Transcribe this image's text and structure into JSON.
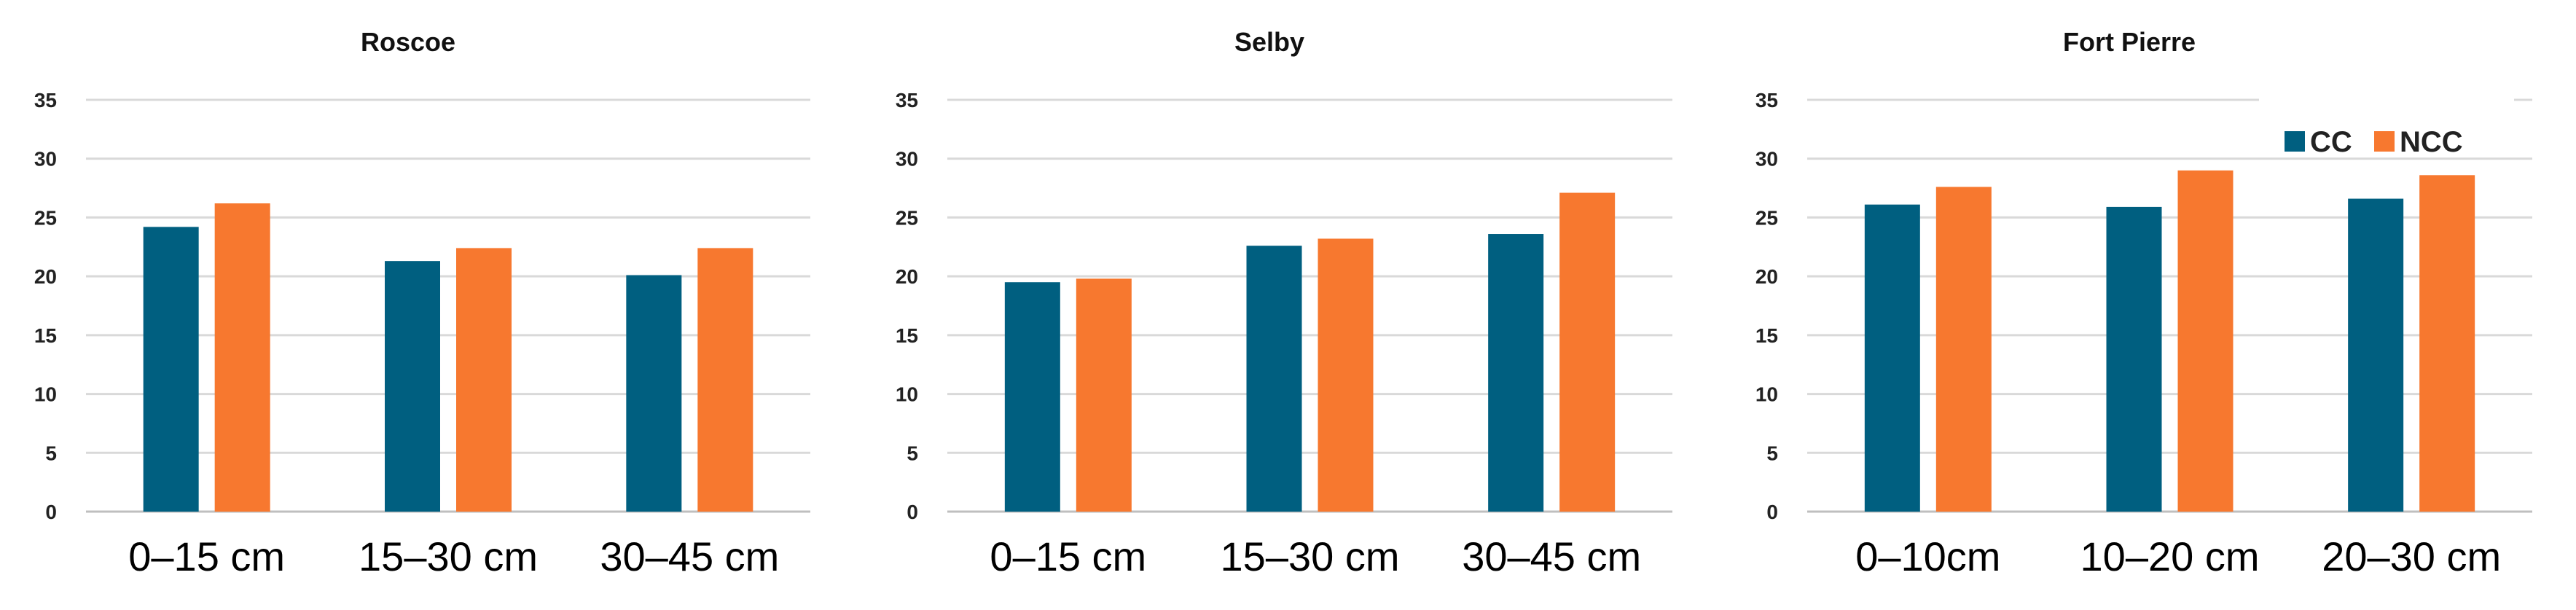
{
  "colors": {
    "CC": "#005f80",
    "NCC": "#f7782f"
  },
  "legend": {
    "items": [
      "CC",
      "NCC"
    ]
  },
  "chart_data": [
    {
      "type": "bar",
      "title": "Roscoe",
      "categories": [
        "0–15 cm",
        "15–30 cm",
        "30–45 cm"
      ],
      "ylim": [
        0,
        35
      ],
      "yticks": [
        0,
        5,
        10,
        15,
        20,
        25,
        30,
        35
      ],
      "grid": true,
      "series": [
        {
          "name": "CC",
          "values": [
            24.2,
            21.3,
            20.1
          ]
        },
        {
          "name": "NCC",
          "values": [
            26.2,
            22.4,
            22.4
          ]
        }
      ]
    },
    {
      "type": "bar",
      "title": "Selby",
      "categories": [
        "0–15 cm",
        "15–30 cm",
        "30–45 cm"
      ],
      "ylim": [
        0,
        35
      ],
      "yticks": [
        0,
        5,
        10,
        15,
        20,
        25,
        30,
        35
      ],
      "grid": true,
      "series": [
        {
          "name": "CC",
          "values": [
            19.5,
            22.6,
            23.6
          ]
        },
        {
          "name": "NCC",
          "values": [
            19.8,
            23.2,
            27.1
          ]
        }
      ]
    },
    {
      "type": "bar",
      "title": "Fort Pierre",
      "categories": [
        "0–10cm",
        "10–20 cm",
        "20–30 cm"
      ],
      "ylim": [
        0,
        35
      ],
      "yticks": [
        0,
        5,
        10,
        15,
        20,
        25,
        30,
        35
      ],
      "grid": true,
      "legend_position": "top-right",
      "series": [
        {
          "name": "CC",
          "values": [
            26.1,
            25.9,
            26.6
          ]
        },
        {
          "name": "NCC",
          "values": [
            27.6,
            29.0,
            28.6
          ]
        }
      ]
    }
  ]
}
